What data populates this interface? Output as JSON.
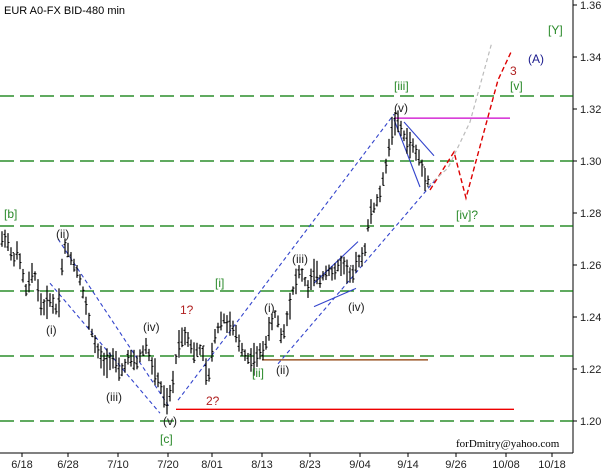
{
  "chart_data": {
    "type": "ohlc",
    "title": "EUR A0-FX BID-480 min",
    "credit": "forDmitry@yahoo.com",
    "ylim": [
      1.19,
      1.36
    ],
    "y_ticks": [
      "1.20",
      "1.22",
      "1.24",
      "1.26",
      "1.28",
      "1.30",
      "1.32",
      "1.34",
      "1.36"
    ],
    "x_ticks": [
      "6/18",
      "6/28",
      "7/10",
      "7/20",
      "8/01",
      "8/13",
      "8/23",
      "9/04",
      "9/14",
      "9/26",
      "10/08",
      "10/18"
    ],
    "grid": false,
    "horizontal_levels": [
      1.2,
      1.225,
      1.25,
      1.275,
      1.3,
      1.325
    ],
    "colors": {
      "bars": "#000000",
      "levels": "#007700",
      "channel": "#3344cc",
      "wave_forecast": "#dd0000",
      "resistance": "#cc00cc",
      "support_red": "#ee0000",
      "support_brown": "#8a3a00",
      "green_label": "#2a8a2a",
      "navy_label": "#1a1a8c",
      "red_label": "#b02020",
      "black_label": "#222222"
    },
    "wave_labels": [
      {
        "text": "[Y]",
        "color": "green_label",
        "size": 22
      },
      {
        "text": "(A)",
        "color": "navy_label",
        "size": 22
      },
      {
        "text": "3",
        "color": "red_label",
        "size": 13
      },
      {
        "text": "[v]",
        "color": "green_label",
        "size": 13
      },
      {
        "text": "[iii]",
        "color": "green_label",
        "size": 12
      },
      {
        "text": "(v)",
        "color": "black_label",
        "size": 12
      },
      {
        "text": "[b]",
        "color": "green_label",
        "size": 12
      },
      {
        "text": "(ii)",
        "color": "black_label",
        "size": 12
      },
      {
        "text": "(i)",
        "color": "black_label",
        "size": 12
      },
      {
        "text": "(iii)",
        "color": "black_label",
        "size": 12
      },
      {
        "text": "(iv)",
        "color": "black_label",
        "size": 12
      },
      {
        "text": "(v)",
        "color": "black_label",
        "size": 12
      },
      {
        "text": "[c]",
        "color": "green_label",
        "size": 12
      },
      {
        "text": "1?",
        "color": "red_label",
        "size": 12
      },
      {
        "text": "2?",
        "color": "red_label",
        "size": 12
      },
      {
        "text": "[i]",
        "color": "green_label",
        "size": 12
      },
      {
        "text": "(i)",
        "color": "black_label",
        "size": 12
      },
      {
        "text": "[ii]",
        "color": "green_label",
        "size": 12
      },
      {
        "text": "(ii)",
        "color": "black_label",
        "size": 12
      },
      {
        "text": "(iii)",
        "color": "black_label",
        "size": 12
      },
      {
        "text": "(iv)",
        "color": "black_label",
        "size": 12
      },
      {
        "text": "[iv]?",
        "color": "green_label",
        "size": 12
      }
    ],
    "price_path": [
      [
        0,
        1.268
      ],
      [
        6,
        1.272
      ],
      [
        12,
        1.262
      ],
      [
        18,
        1.265
      ],
      [
        26,
        1.25
      ],
      [
        34,
        1.258
      ],
      [
        42,
        1.243
      ],
      [
        50,
        1.247
      ],
      [
        58,
        1.242
      ],
      [
        64,
        1.268
      ],
      [
        72,
        1.262
      ],
      [
        80,
        1.255
      ],
      [
        88,
        1.24
      ],
      [
        96,
        1.228
      ],
      [
        104,
        1.222
      ],
      [
        112,
        1.225
      ],
      [
        120,
        1.218
      ],
      [
        128,
        1.224
      ],
      [
        136,
        1.222
      ],
      [
        146,
        1.229
      ],
      [
        154,
        1.219
      ],
      [
        160,
        1.214
      ],
      [
        166,
        1.206
      ],
      [
        172,
        1.212
      ],
      [
        178,
        1.23
      ],
      [
        186,
        1.234
      ],
      [
        194,
        1.226
      ],
      [
        202,
        1.228
      ],
      [
        208,
        1.214
      ],
      [
        214,
        1.232
      ],
      [
        222,
        1.24
      ],
      [
        232,
        1.236
      ],
      [
        240,
        1.229
      ],
      [
        248,
        1.224
      ],
      [
        256,
        1.224
      ],
      [
        264,
        1.228
      ],
      [
        270,
        1.236
      ],
      [
        276,
        1.242
      ],
      [
        282,
        1.231
      ],
      [
        288,
        1.242
      ],
      [
        294,
        1.252
      ],
      [
        300,
        1.258
      ],
      [
        308,
        1.251
      ],
      [
        314,
        1.257
      ],
      [
        320,
        1.254
      ],
      [
        328,
        1.259
      ],
      [
        334,
        1.256
      ],
      [
        340,
        1.261
      ],
      [
        346,
        1.259
      ],
      [
        352,
        1.255
      ],
      [
        358,
        1.262
      ],
      [
        364,
        1.264
      ],
      [
        370,
        1.28
      ],
      [
        376,
        1.283
      ],
      [
        382,
        1.29
      ],
      [
        388,
        1.303
      ],
      [
        394,
        1.316
      ],
      [
        400,
        1.313
      ],
      [
        406,
        1.308
      ],
      [
        412,
        1.306
      ],
      [
        418,
        1.302
      ],
      [
        424,
        1.295
      ],
      [
        428,
        1.293
      ]
    ]
  }
}
